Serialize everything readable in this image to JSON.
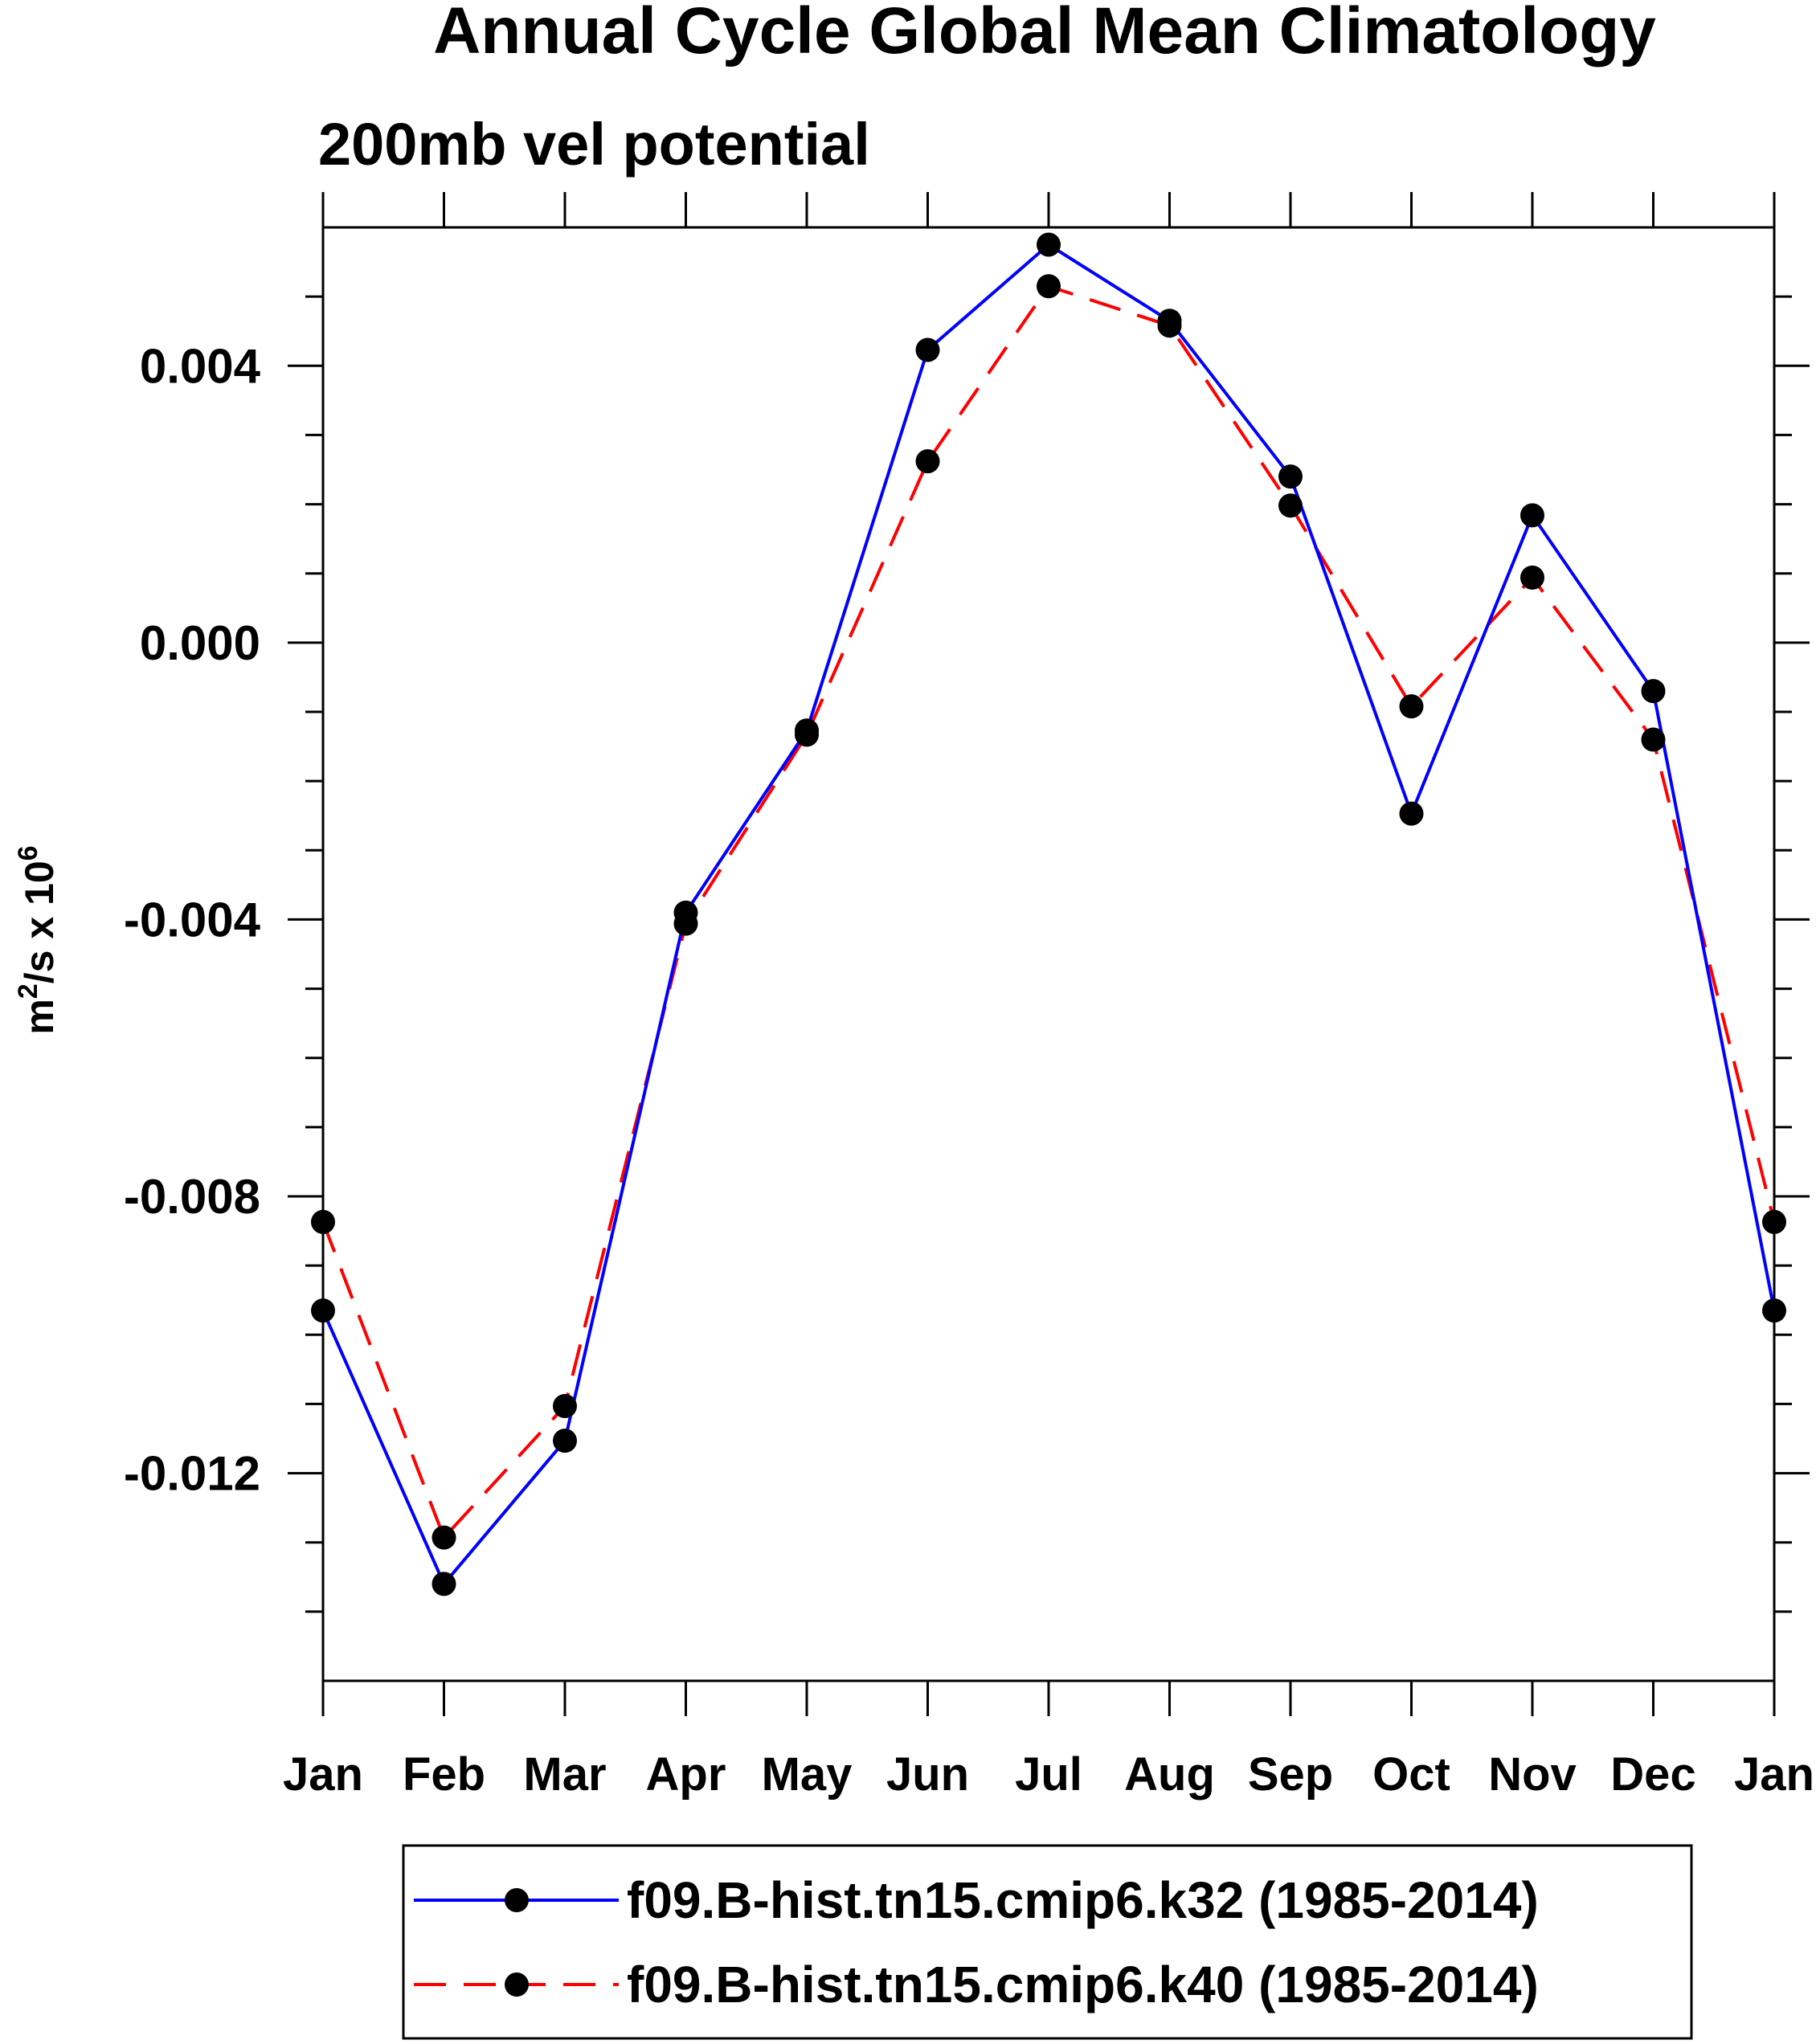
{
  "chart_data": {
    "type": "line",
    "title": "Annual Cycle Global Mean Climatology",
    "subtitle": "200mb vel potential",
    "ylabel": {
      "base": "m",
      "exp1": "2",
      "mid": "/s x 10",
      "exp2": "6"
    },
    "xlabel": "",
    "categories": [
      "Jan",
      "Feb",
      "Mar",
      "Apr",
      "May",
      "Jun",
      "Jul",
      "Aug",
      "Sep",
      "Oct",
      "Nov",
      "Dec",
      "Jan"
    ],
    "ylim": [
      -0.015,
      0.006
    ],
    "yticks": [
      0.004,
      0.0,
      -0.004,
      -0.008,
      -0.012
    ],
    "ytick_labels": [
      "0.004",
      "0.000",
      "-0.004",
      "-0.008",
      "-0.012"
    ],
    "yminor_step": 0.001,
    "grid": false,
    "legend_position": "bottom",
    "series": [
      {
        "name": "f09.B-hist.tn15.cmip6.k32 (1985-2014)",
        "color": "#0000ff",
        "dash": "solid",
        "values": [
          -0.00965,
          -0.0136,
          -0.01153,
          -0.0039,
          -0.00127,
          0.00423,
          0.00575,
          0.00465,
          0.0024,
          -0.00247,
          0.00184,
          -0.0007,
          -0.00965
        ]
      },
      {
        "name": "f09.B-hist.tn15.cmip6.k40 (1985-2014)",
        "color": "#ff0000",
        "dash": "dashed",
        "values": [
          -0.00837,
          -0.01293,
          -0.01103,
          -0.00406,
          -0.00133,
          0.00262,
          0.00515,
          0.00458,
          0.00198,
          -0.00092,
          0.00094,
          -0.0014,
          -0.00837
        ]
      }
    ],
    "marker_color": "#000000"
  }
}
